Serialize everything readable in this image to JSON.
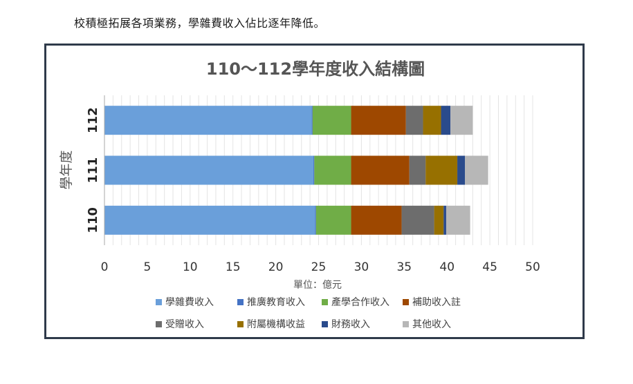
{
  "intro_text": "校積極拓展各項業務，學雜費收入佔比逐年降低。",
  "colors": {
    "學雜費收入": "#6a9fda",
    "推廣教育收入": "#4472c4",
    "產學合作收入": "#70ad47",
    "補助收入註": "#9e4800",
    "受贈收入": "#6d6d6d",
    "附屬機構收益": "#977000",
    "財務收入": "#2a4b8c",
    "其他收入": "#b7b7b7"
  },
  "chart_data": {
    "type": "bar",
    "orientation": "horizontal",
    "stacked": true,
    "title": "110～112學年度收入結構圖",
    "xlabel": "單位：億元",
    "ylabel": "學年度",
    "xlim": [
      0,
      50
    ],
    "xticks": [
      "0",
      "5",
      "10",
      "15",
      "20",
      "25",
      "30",
      "35",
      "40",
      "45",
      "50"
    ],
    "categories": [
      "112",
      "111",
      "110"
    ],
    "grid": true,
    "legend_position": "bottom",
    "series": [
      {
        "name": "學雜費收入",
        "values": [
          24.2,
          24.4,
          24.6
        ]
      },
      {
        "name": "推廣教育收入",
        "values": [
          0.1,
          0.1,
          0.1
        ]
      },
      {
        "name": "產學合作收入",
        "values": [
          4.5,
          4.3,
          4.1
        ]
      },
      {
        "name": "補助收入註",
        "values": [
          6.4,
          6.8,
          5.9
        ]
      },
      {
        "name": "受贈收入",
        "values": [
          2.0,
          1.9,
          3.8
        ]
      },
      {
        "name": "附屬機構收益",
        "values": [
          2.1,
          3.7,
          1.1
        ]
      },
      {
        "name": "財務收入",
        "values": [
          1.1,
          0.9,
          0.3
        ]
      },
      {
        "name": "其他收入",
        "values": [
          2.6,
          2.7,
          2.8
        ]
      }
    ]
  }
}
